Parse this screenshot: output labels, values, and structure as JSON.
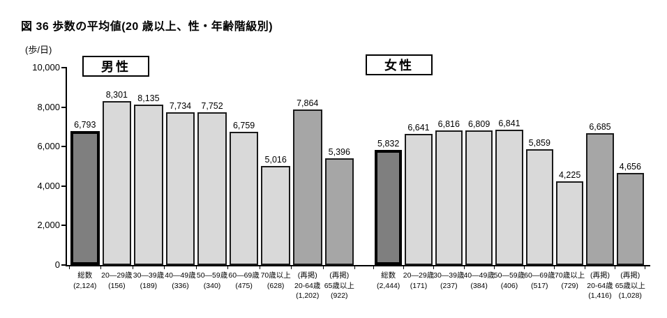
{
  "figure": {
    "title": "図 36  歩数の平均値(20 歳以上、性・年齢階級別)",
    "unit_label": "(歩/日)"
  },
  "chart_data": {
    "type": "bar",
    "title": "図 36  歩数の平均値(20 歳以上、性・年齢階級別)",
    "ylabel": "(歩/日)",
    "ylim": [
      0,
      10000
    ],
    "grid": false,
    "legend_position": "none",
    "y_ticks": [
      {
        "value": 0,
        "label": "0"
      },
      {
        "value": 2000,
        "label": "2,000"
      },
      {
        "value": 4000,
        "label": "4,000"
      },
      {
        "value": 6000,
        "label": "6,000"
      },
      {
        "value": 8000,
        "label": "8,000"
      },
      {
        "value": 10000,
        "label": "10,000"
      }
    ],
    "colors": {
      "bar_total_fill": "#7f7f7f",
      "bar_age_fill": "#d9d9d9",
      "bar_rep_fill": "#a6a6a6",
      "bar_border": "#000000"
    },
    "groups": [
      {
        "label": "男性",
        "bars": [
          {
            "category_lines": [
              "総数"
            ],
            "n": "(2,124)",
            "value": 6793,
            "value_label": "6,793",
            "style": "total"
          },
          {
            "category_lines": [
              "20—29歳"
            ],
            "n": "(156)",
            "value": 8301,
            "value_label": "8,301",
            "style": "age"
          },
          {
            "category_lines": [
              "30—39歳"
            ],
            "n": "(189)",
            "value": 8135,
            "value_label": "8,135",
            "style": "age"
          },
          {
            "category_lines": [
              "40—49歳"
            ],
            "n": "(336)",
            "value": 7734,
            "value_label": "7,734",
            "style": "age"
          },
          {
            "category_lines": [
              "50—59歳"
            ],
            "n": "(340)",
            "value": 7752,
            "value_label": "7,752",
            "style": "age"
          },
          {
            "category_lines": [
              "60—69歳"
            ],
            "n": "(475)",
            "value": 6759,
            "value_label": "6,759",
            "style": "age"
          },
          {
            "category_lines": [
              "70歳以上"
            ],
            "n": "(628)",
            "value": 5016,
            "value_label": "5,016",
            "style": "age"
          },
          {
            "category_lines": [
              "(再掲)",
              "20-64歳"
            ],
            "n": "(1,202)",
            "value": 7864,
            "value_label": "7,864",
            "style": "rep"
          },
          {
            "category_lines": [
              "(再掲)",
              "65歳以上"
            ],
            "n": "(922)",
            "value": 5396,
            "value_label": "5,396",
            "style": "rep"
          }
        ]
      },
      {
        "label": "女性",
        "bars": [
          {
            "category_lines": [
              "総数"
            ],
            "n": "(2,444)",
            "value": 5832,
            "value_label": "5,832",
            "style": "total"
          },
          {
            "category_lines": [
              "20—29歳"
            ],
            "n": "(171)",
            "value": 6641,
            "value_label": "6,641",
            "style": "age"
          },
          {
            "category_lines": [
              "30—39歳"
            ],
            "n": "(237)",
            "value": 6816,
            "value_label": "6,816",
            "style": "age"
          },
          {
            "category_lines": [
              "40—49歳"
            ],
            "n": "(384)",
            "value": 6809,
            "value_label": "6,809",
            "style": "age"
          },
          {
            "category_lines": [
              "50—59歳"
            ],
            "n": "(406)",
            "value": 6841,
            "value_label": "6,841",
            "style": "age"
          },
          {
            "category_lines": [
              "60—69歳"
            ],
            "n": "(517)",
            "value": 5859,
            "value_label": "5,859",
            "style": "age"
          },
          {
            "category_lines": [
              "70歳以上"
            ],
            "n": "(729)",
            "value": 4225,
            "value_label": "4,225",
            "style": "age"
          },
          {
            "category_lines": [
              "(再掲)",
              "20-64歳"
            ],
            "n": "(1,416)",
            "value": 6685,
            "value_label": "6,685",
            "style": "rep"
          },
          {
            "category_lines": [
              "(再掲)",
              "65歳以上"
            ],
            "n": "(1,028)",
            "value": 4656,
            "value_label": "4,656",
            "style": "rep"
          }
        ]
      }
    ]
  }
}
